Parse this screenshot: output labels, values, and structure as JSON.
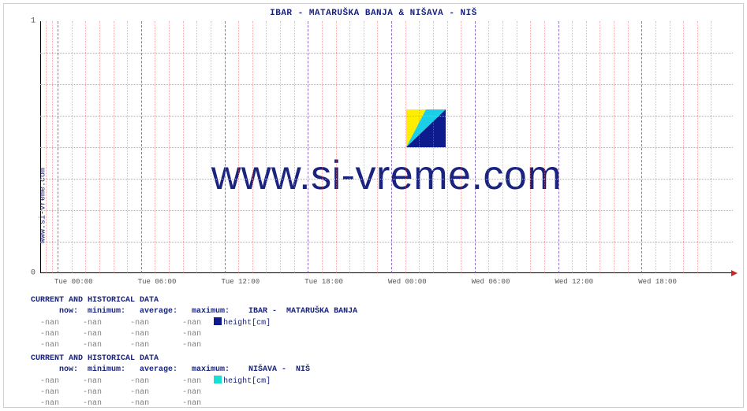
{
  "side_label": "www.si-vreme.com",
  "title": "IBAR -  MATARUŠKA BANJA &  NIŠAVA -  NIŠ",
  "watermark": "www.si-vreme.com",
  "chart": {
    "type": "line",
    "ylim": [
      0,
      1
    ],
    "yticks": [
      0,
      1
    ],
    "major_x_labels": [
      "Tue 00:00",
      "Tue 06:00",
      "Tue 12:00",
      "Tue 18:00",
      "Wed 00:00",
      "Wed 06:00",
      "Wed 12:00",
      "Wed 18:00"
    ],
    "minor_per_major": 5,
    "colors": {
      "title": "#1a237e",
      "axis": "#000000",
      "hgrid": "#b0b0b0",
      "major_vgrid": "#7e57c2",
      "minor_vgrid": "#e57373",
      "arrow": "#c62828",
      "series1": "#0d1b8c",
      "series2": "#18e0d0",
      "background": "#ffffff",
      "logo_yellow": "#ffee00",
      "logo_cyan": "#1bcfe8",
      "logo_blue": "#0d1b8c"
    }
  },
  "block1": {
    "header": "CURRENT AND HISTORICAL DATA",
    "cols": "      now:  minimum:   average:   maximum:    IBAR -  MATARUŠKA BANJA",
    "rows": [
      {
        "now": "-nan",
        "min": "-nan",
        "avg": "-nan",
        "max": "-nan",
        "legend": "height[cm]",
        "swatch": "#0d1b8c"
      },
      {
        "now": "-nan",
        "min": "-nan",
        "avg": "-nan",
        "max": "-nan"
      },
      {
        "now": "-nan",
        "min": "-nan",
        "avg": "-nan",
        "max": "-nan"
      }
    ]
  },
  "block2": {
    "header": "CURRENT AND HISTORICAL DATA",
    "cols": "      now:  minimum:   average:   maximum:    NIŠAVA -  NIŠ",
    "rows": [
      {
        "now": "-nan",
        "min": "-nan",
        "avg": "-nan",
        "max": "-nan",
        "legend": "height[cm]",
        "swatch": "#18e0d0"
      },
      {
        "now": "-nan",
        "min": "-nan",
        "avg": "-nan",
        "max": "-nan"
      },
      {
        "now": "-nan",
        "min": "-nan",
        "avg": "-nan",
        "max": "-nan"
      }
    ]
  }
}
